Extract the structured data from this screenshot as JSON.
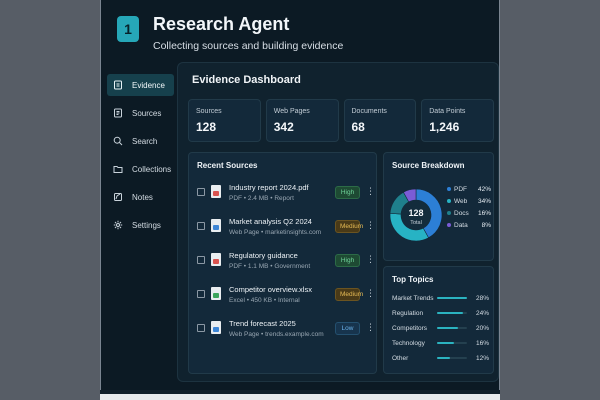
{
  "app": {
    "badge": "1",
    "title": "Research Agent",
    "subtitle": "Collecting sources and building evidence"
  },
  "sidebar": {
    "items": [
      {
        "label": "Evidence",
        "icon": "evidence-icon",
        "active": true
      },
      {
        "label": "Sources",
        "icon": "sources-icon",
        "active": false
      },
      {
        "label": "Search",
        "icon": "search-icon",
        "active": false
      },
      {
        "label": "Collections",
        "icon": "collections-icon",
        "active": false
      },
      {
        "label": "Notes",
        "icon": "notes-icon",
        "active": false
      },
      {
        "label": "Settings",
        "icon": "gear-icon",
        "active": false
      }
    ]
  },
  "dashboard": {
    "title": "Evidence Dashboard",
    "stats": [
      {
        "label": "Sources",
        "value": "128"
      },
      {
        "label": "Web Pages",
        "value": "342"
      },
      {
        "label": "Documents",
        "value": "68"
      },
      {
        "label": "Data Points",
        "value": "1,246"
      }
    ]
  },
  "recent": {
    "title": "Recent Sources",
    "items": [
      {
        "name": "Industry report 2024.pdf",
        "meta": "PDF • 2.4 MB • Report",
        "badge": "High",
        "level": "high",
        "type": "pdf"
      },
      {
        "name": "Market analysis Q2 2024",
        "meta": "Web Page • marketinsights.com",
        "badge": "Medium",
        "level": "medium",
        "type": "web"
      },
      {
        "name": "Regulatory guidance",
        "meta": "PDF • 1.1 MB • Government",
        "badge": "High",
        "level": "high",
        "type": "pdf"
      },
      {
        "name": "Competitor overview.xlsx",
        "meta": "Excel • 450 KB • Internal",
        "badge": "Medium",
        "level": "medium",
        "type": "xls"
      },
      {
        "name": "Trend forecast 2025",
        "meta": "Web Page • trends.example.com",
        "badge": "Low",
        "level": "low",
        "type": "web"
      }
    ]
  },
  "breakdown": {
    "title": "Source Breakdown",
    "total_value": "128",
    "total_label": "Total",
    "items": [
      {
        "label": "PDF",
        "pct": "42%",
        "value": 42,
        "color": "#2c7fd6"
      },
      {
        "label": "Web",
        "pct": "34%",
        "value": 34,
        "color": "#27b3c4"
      },
      {
        "label": "Docs",
        "pct": "16%",
        "value": 16,
        "color": "#1f7f8c"
      },
      {
        "label": "Data",
        "pct": "8%",
        "value": 8,
        "color": "#7b5cd6"
      }
    ]
  },
  "topics": {
    "title": "Top Topics",
    "items": [
      {
        "label": "Market Trends",
        "pct": "28%",
        "value": 28
      },
      {
        "label": "Regulation",
        "pct": "24%",
        "value": 24
      },
      {
        "label": "Competitors",
        "pct": "20%",
        "value": 20
      },
      {
        "label": "Technology",
        "pct": "16%",
        "value": 16
      },
      {
        "label": "Other",
        "pct": "12%",
        "value": 12
      }
    ]
  }
}
